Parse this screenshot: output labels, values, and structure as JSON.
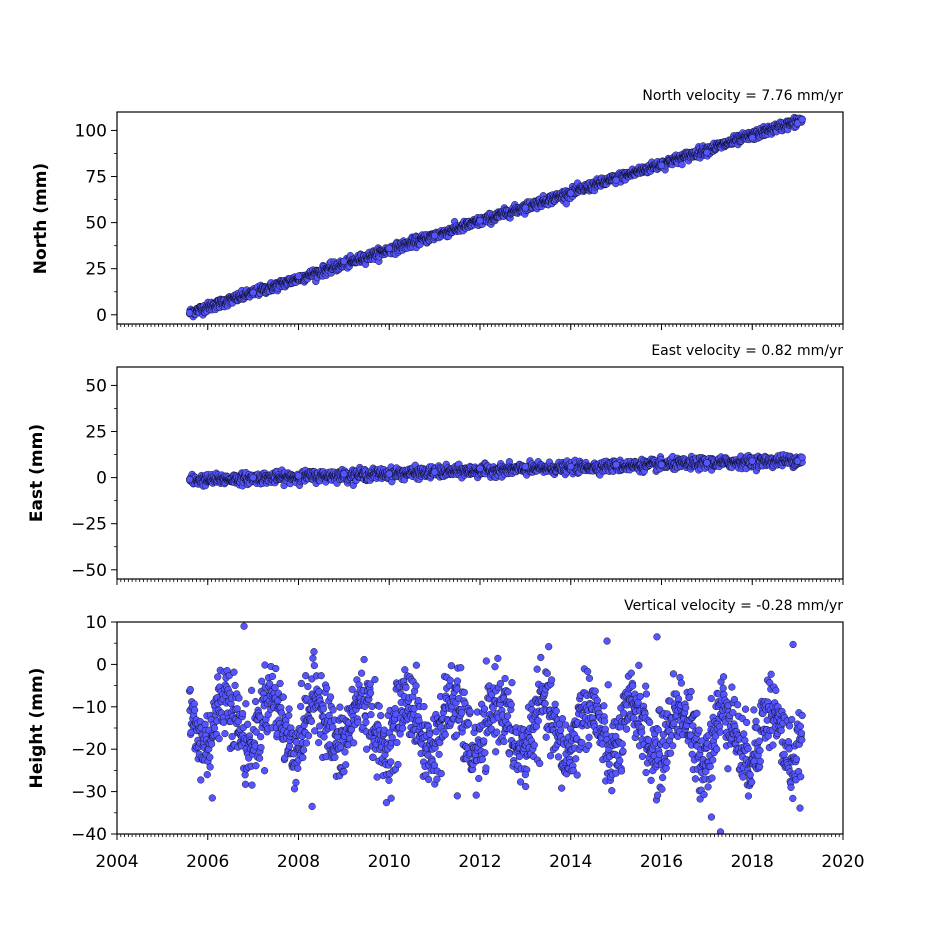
{
  "chart_data": {
    "type": "scatter",
    "x_axis": {
      "xlim": [
        2004,
        2020
      ],
      "ticks": [
        2004,
        2006,
        2008,
        2010,
        2012,
        2014,
        2016,
        2018,
        2020
      ],
      "tick_labels": [
        "2004",
        "2006",
        "2008",
        "2010",
        "2012",
        "2014",
        "2016",
        "2018",
        "2020"
      ],
      "minor_ticks_per_year": 12
    },
    "marker_color": "#5555ff",
    "marker_edge_color": "#000000",
    "panels": [
      {
        "title": "North velocity = 7.76 mm/yr",
        "ylabel": "North (mm)",
        "ylim": [
          -5,
          110
        ],
        "yticks": [
          0,
          25,
          50,
          75,
          100
        ],
        "ytick_labels": [
          "0",
          "25",
          "50",
          "75",
          "100"
        ],
        "trend": {
          "start_year": 2005.6,
          "end_year": 2019.1,
          "start_value": 1,
          "velocity": 7.76,
          "scatter": 1.3
        },
        "points": [
          [
            2005.6,
            1
          ],
          [
            2007,
            12
          ],
          [
            2008,
            21
          ],
          [
            2009,
            29
          ],
          [
            2010,
            36
          ],
          [
            2011,
            43
          ],
          [
            2012,
            51
          ],
          [
            2013,
            58
          ],
          [
            2014,
            66
          ],
          [
            2015,
            73
          ],
          [
            2016,
            81
          ],
          [
            2017,
            88
          ],
          [
            2018,
            96
          ],
          [
            2019,
            104
          ],
          [
            2019.1,
            106
          ]
        ]
      },
      {
        "title": "East velocity = 0.82 mm/yr",
        "ylabel": "East (mm)",
        "ylim": [
          -55,
          60
        ],
        "yticks": [
          -50,
          -25,
          0,
          25,
          50
        ],
        "ytick_labels": [
          "−50",
          "−25",
          "0",
          "25",
          "50"
        ],
        "trend": {
          "start_year": 2005.6,
          "end_year": 2019.1,
          "start_value": -1.5,
          "velocity": 0.82,
          "scatter": 1.5
        },
        "points": [
          [
            2005.6,
            -1
          ],
          [
            2007,
            0
          ],
          [
            2008,
            1
          ],
          [
            2009,
            2
          ],
          [
            2010,
            2
          ],
          [
            2011,
            3
          ],
          [
            2012,
            5
          ],
          [
            2013,
            6
          ],
          [
            2014,
            6
          ],
          [
            2015,
            7
          ],
          [
            2016,
            7
          ],
          [
            2017,
            8
          ],
          [
            2018,
            9
          ],
          [
            2019,
            9
          ],
          [
            2019.1,
            11
          ]
        ]
      },
      {
        "title": "Vertical velocity = -0.28 mm/yr",
        "ylabel": "Height (mm)",
        "ylim": [
          -40,
          10
        ],
        "yticks": [
          -40,
          -30,
          -20,
          -10,
          0,
          10
        ],
        "ytick_labels": [
          "−40",
          "−30",
          "−20",
          "−10",
          "0",
          "10"
        ],
        "trend": {
          "start_year": 2005.6,
          "end_year": 2019.1,
          "start_value": -13,
          "velocity": -0.28,
          "seasonal_amplitude": 6,
          "scatter": 4.5
        },
        "points": [
          [
            2006.8,
            9
          ],
          [
            2015.9,
            6.5
          ],
          [
            2014.8,
            5.5
          ],
          [
            2018.9,
            4.7
          ],
          [
            2008.3,
            -33.5
          ],
          [
            2017.3,
            -39.5
          ],
          [
            2017.1,
            -36
          ],
          [
            2006.1,
            -31.5
          ],
          [
            2011.5,
            -31
          ],
          [
            2013.0,
            -26
          ]
        ]
      }
    ]
  }
}
